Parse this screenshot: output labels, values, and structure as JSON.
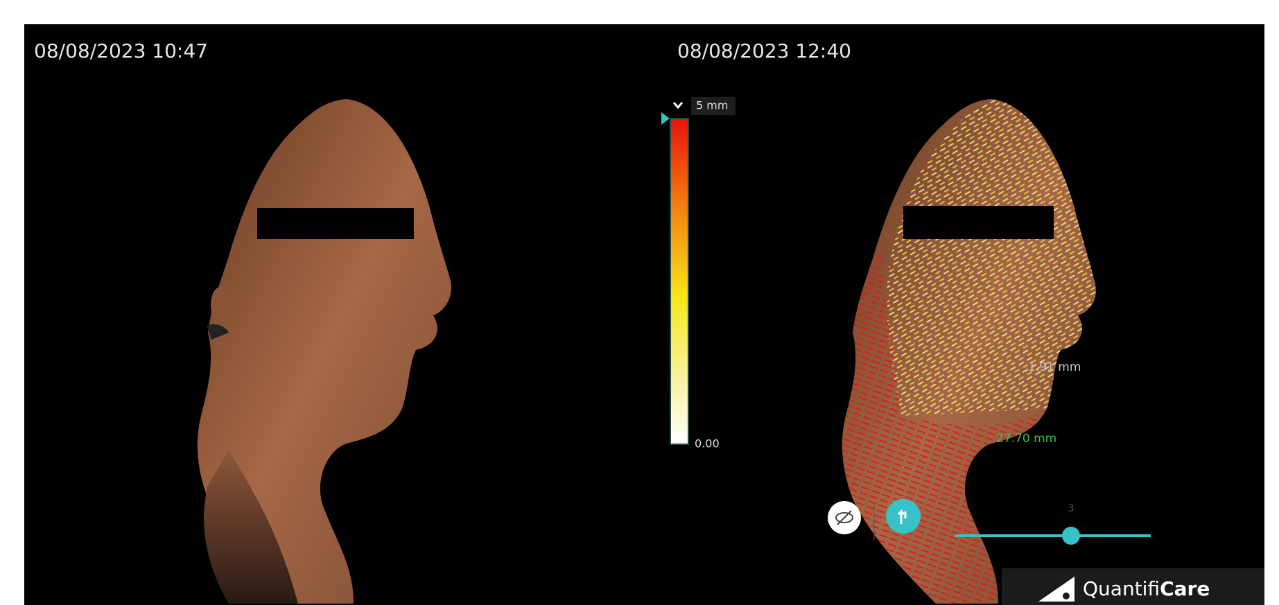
{
  "left_view": {
    "timestamp": "08/08/2023 10:47"
  },
  "right_view": {
    "timestamp": "08/08/2023 12:40"
  },
  "color_scale": {
    "max_label": "5 mm",
    "min_label": "0.00"
  },
  "annotations": [
    {
      "label": "1.91 mm"
    },
    {
      "label": "27.70 mm"
    }
  ],
  "slider": {
    "label": "3"
  },
  "logo": {
    "prefix": "Quantifi",
    "emphasis": "Care"
  }
}
